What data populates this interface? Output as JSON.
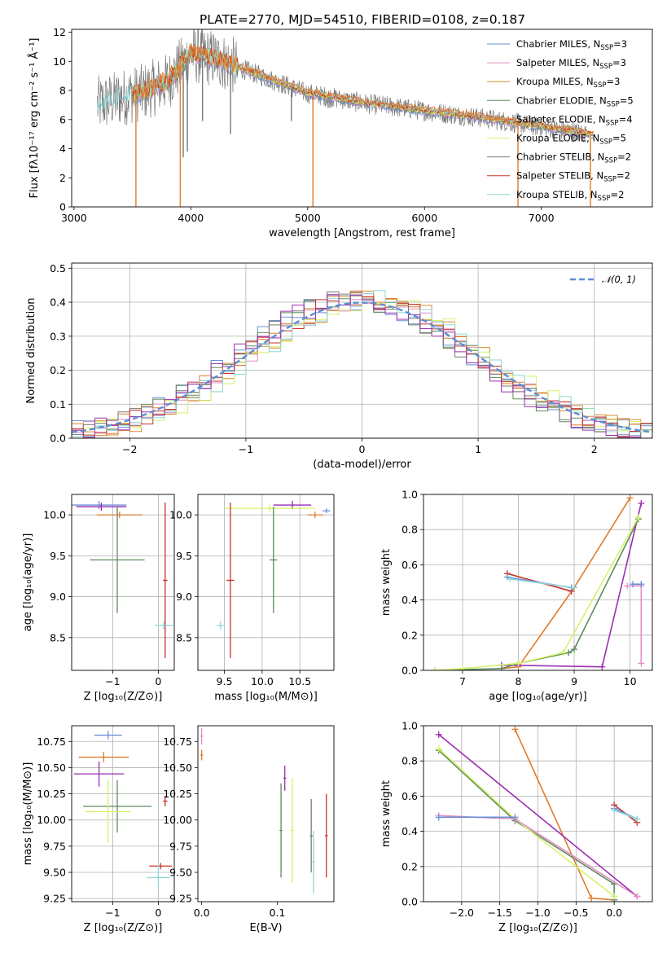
{
  "figure": {
    "title": "PLATE=2770, MJD=54510, FIBERID=0108, z=0.187"
  },
  "colors": {
    "Chabrier MILES": "#6a8fd6",
    "Salpeter MILES": "#e48fc4",
    "Kroupa MILES": "#d98a2a",
    "Chabrier ELODIE": "#5f8a5f",
    "Salpeter ELODIE": "#e07b2a",
    "Kroupa ELODIE": "#d6f26a",
    "Chabrier STELIB": "#777777",
    "Salpeter STELIB": "#c8302a",
    "Kroupa STELIB": "#8fd6d6",
    "purple": "#9a2fb0",
    "normal_curve": "#5b8fd6"
  },
  "chart_data": [
    {
      "id": "spectrum",
      "type": "line",
      "title": "PLATE=2770, MJD=54510, FIBERID=0108, z=0.187",
      "xlabel": "wavelength [Angstrom, rest frame]",
      "ylabel": "Flux [fλ10⁻¹⁷ erg cm⁻² s⁻¹ Å⁻¹]",
      "xlim": [
        2980,
        7950
      ],
      "ylim": [
        0,
        12.2
      ],
      "xticks": [
        3000,
        4000,
        5000,
        6000,
        7000
      ],
      "yticks": [
        0,
        2,
        4,
        6,
        8,
        10,
        12
      ],
      "legend_position": "upper-right",
      "legend": [
        {
          "label": "Chabrier MILES, N",
          "sub": "SSP",
          "eq": "=3"
        },
        {
          "label": "Salpeter MILES, N",
          "sub": "SSP",
          "eq": "=3"
        },
        {
          "label": "Kroupa MILES, N",
          "sub": "SSP",
          "eq": "=3"
        },
        {
          "label": "Chabrier ELODIE, N",
          "sub": "SSP",
          "eq": "=5"
        },
        {
          "label": "Salpeter ELODIE, N",
          "sub": "SSP",
          "eq": "=4"
        },
        {
          "label": "Kroupa ELODIE, N",
          "sub": "SSP",
          "eq": "=5"
        },
        {
          "label": "Chabrier STELIB, N",
          "sub": "SSP",
          "eq": "=2"
        },
        {
          "label": "Salpeter STELIB, N",
          "sub": "SSP",
          "eq": "=2"
        },
        {
          "label": "Kroupa STELIB, N",
          "sub": "SSP",
          "eq": "=2"
        }
      ],
      "continuum": {
        "x": [
          3200,
          3400,
          3600,
          3800,
          4000,
          4200,
          4500,
          5000,
          5500,
          6000,
          6500,
          7000,
          7400
        ],
        "y": [
          7.0,
          7.5,
          7.9,
          8.6,
          10.5,
          10.2,
          9.3,
          7.8,
          7.1,
          6.6,
          6.1,
          5.5,
          5.0
        ]
      },
      "dips": [
        {
          "x": 3530,
          "y": 0.0
        },
        {
          "x": 3910,
          "y": 0.0
        },
        {
          "x": 5045,
          "y": 0.0
        },
        {
          "x": 6800,
          "y": 0.0
        },
        {
          "x": 7420,
          "y": 0.0
        },
        {
          "x": 3935,
          "y": 3.4
        },
        {
          "x": 3970,
          "y": 3.8
        },
        {
          "x": 4100,
          "y": 5.9
        },
        {
          "x": 4340,
          "y": 5.0
        },
        {
          "x": 4860,
          "y": 5.9
        },
        {
          "x": 5175,
          "y": 6.8
        }
      ]
    },
    {
      "id": "residuals",
      "type": "line",
      "xlabel": "(data-model)/error",
      "ylabel": "Normed distribution",
      "xlim": [
        -2.5,
        2.5
      ],
      "ylim": [
        0,
        0.515
      ],
      "xticks": [
        -2,
        -1,
        0,
        1,
        2
      ],
      "yticks": [
        0.0,
        0.1,
        0.2,
        0.3,
        0.4,
        0.5
      ],
      "legend_position": "upper-right",
      "legend": [
        {
          "label": "𝒩(0, 1)"
        }
      ],
      "bin_width": 0.1
    },
    {
      "id": "age_vs_Z",
      "type": "scatter",
      "xlabel": "Z [log₁₀(Z/Z⊙)]",
      "ylabel": "age  [log₁₀(age/yr)]",
      "xlim": [
        -1.9,
        0.35
      ],
      "ylim": [
        8.1,
        10.25
      ],
      "xticks": [
        -1,
        0
      ],
      "yticks": [
        8.5,
        9.0,
        9.5,
        10.0
      ],
      "points": [
        {
          "x": -1.3,
          "y": 10.12,
          "color": "#6a8fd6",
          "xerr": 0.6,
          "yerr": 0.05
        },
        {
          "x": -1.25,
          "y": 10.1,
          "color": "#9a2fb0",
          "xerr": 0.55,
          "yerr": 0.05
        },
        {
          "x": -0.85,
          "y": 10.0,
          "color": "#e07b2a",
          "xerr": 0.5,
          "yerr": 0.04
        },
        {
          "x": -0.9,
          "y": 9.45,
          "color": "#5f8a5f",
          "xerr": 0.6,
          "yerr": 0.65
        },
        {
          "x": 0.15,
          "y": 9.2,
          "color": "#c8302a",
          "xerr": 0.05,
          "yerr": 0.95
        },
        {
          "x": 0.12,
          "y": 8.65,
          "color": "#8fd6d6",
          "xerr": 0.2,
          "yerr": 0.05
        }
      ]
    },
    {
      "id": "age_vs_mass",
      "type": "scatter",
      "xlabel": "mass [log₁₀(M/M⊙)]",
      "ylabel": "",
      "xlim": [
        9.15,
        10.95
      ],
      "ylim": [
        8.1,
        10.25
      ],
      "xticks": [
        9.5,
        10.0,
        10.5
      ],
      "yticks": [
        8.5,
        9.0,
        9.5,
        10.0
      ],
      "points": [
        {
          "x": 10.4,
          "y": 10.12,
          "color": "#9a2fb0",
          "xerr": 0.25,
          "yerr": 0.05
        },
        {
          "x": 10.1,
          "y": 10.08,
          "color": "#d6f26a",
          "xerr": 0.6,
          "yerr": 0.05
        },
        {
          "x": 10.7,
          "y": 10.0,
          "color": "#e07b2a",
          "xerr": 0.1,
          "yerr": 0.04
        },
        {
          "x": 10.85,
          "y": 10.05,
          "color": "#6a8fd6",
          "xerr": 0.05,
          "yerr": 0.03
        },
        {
          "x": 10.15,
          "y": 9.45,
          "color": "#5f8a5f",
          "xerr": 0.05,
          "yerr": 0.65
        },
        {
          "x": 9.58,
          "y": 9.2,
          "color": "#c8302a",
          "xerr": 0.05,
          "yerr": 0.95
        },
        {
          "x": 9.45,
          "y": 8.65,
          "color": "#8fd6d6",
          "xerr": 0.05,
          "yerr": 0.05
        }
      ]
    },
    {
      "id": "massweight_vs_age",
      "type": "line",
      "xlabel": "age  [log₁₀(age/yr)]",
      "ylabel": "mass weight",
      "xlim": [
        6.3,
        10.4
      ],
      "ylim": [
        0,
        1.0
      ],
      "xticks": [
        7,
        8,
        9,
        10
      ],
      "yticks": [
        0.0,
        0.2,
        0.4,
        0.6,
        0.8,
        1.0
      ],
      "series": [
        {
          "color": "#e07b2a",
          "x": [
            7.7,
            8.0,
            9.0,
            10.0
          ],
          "y": [
            0.01,
            0.02,
            0.47,
            0.98
          ]
        },
        {
          "color": "#9a2fb0",
          "x": [
            7.7,
            9.5,
            10.2
          ],
          "y": [
            0.03,
            0.02,
            0.95
          ]
        },
        {
          "color": "#5f8a5f",
          "x": [
            6.5,
            7.7,
            8.0,
            8.9,
            9.0,
            10.15
          ],
          "y": [
            0.0,
            0.01,
            0.04,
            0.1,
            0.12,
            0.86
          ]
        },
        {
          "color": "#d6f26a",
          "x": [
            6.5,
            7.0,
            8.0,
            8.8,
            10.15
          ],
          "y": [
            0.0,
            0.01,
            0.04,
            0.1,
            0.87
          ]
        },
        {
          "color": "#c8302a",
          "x": [
            7.8,
            8.95
          ],
          "y": [
            0.55,
            0.45
          ]
        },
        {
          "color": "#6a8fd6",
          "x": [
            7.8,
            8.95
          ],
          "y": [
            0.53,
            0.47
          ]
        },
        {
          "color": "#8fd6d6",
          "x": [
            7.85,
            9.0
          ],
          "y": [
            0.52,
            0.47
          ]
        },
        {
          "color": "#e48fc4",
          "x": [
            9.95,
            10.2,
            10.2
          ],
          "y": [
            0.48,
            0.48,
            0.04
          ]
        },
        {
          "color": "#6a8fd6",
          "x": [
            10.05,
            10.2
          ],
          "y": [
            0.49,
            0.49
          ]
        }
      ]
    },
    {
      "id": "mass_vs_Z",
      "type": "scatter",
      "xlabel": "Z [log₁₀(Z/Z⊙)]",
      "ylabel": "mass [log₁₀(M/M⊙)]",
      "xlim": [
        -1.9,
        0.35
      ],
      "ylim": [
        9.22,
        10.9
      ],
      "xticks": [
        -1,
        0
      ],
      "yticks": [
        9.25,
        9.5,
        9.75,
        10.0,
        10.25,
        10.5,
        10.75
      ],
      "points": [
        {
          "x": -1.1,
          "y": 10.81,
          "color": "#6a8fd6",
          "xerr": 0.3,
          "yerr": 0.04
        },
        {
          "x": -1.2,
          "y": 10.6,
          "color": "#e07b2a",
          "xerr": 0.55,
          "yerr": 0.05
        },
        {
          "x": -1.3,
          "y": 10.44,
          "color": "#9a2fb0",
          "xerr": 0.55,
          "yerr": 0.12
        },
        {
          "x": -0.9,
          "y": 10.13,
          "color": "#5f8a5f",
          "xerr": 0.75,
          "yerr": 0.25
        },
        {
          "x": -1.1,
          "y": 10.08,
          "color": "#d6f26a",
          "xerr": 0.5,
          "yerr": 0.3
        },
        {
          "x": 0.15,
          "y": 10.18,
          "color": "#c8302a",
          "xerr": 0.05,
          "yerr": 0.05
        },
        {
          "x": 0.05,
          "y": 9.56,
          "color": "#c8302a",
          "xerr": 0.25,
          "yerr": 0.03
        },
        {
          "x": 0.0,
          "y": 9.45,
          "color": "#8fd6d6",
          "xerr": 0.25,
          "yerr": 0.12
        }
      ]
    },
    {
      "id": "mass_vs_ebv",
      "type": "scatter",
      "xlabel": "E(B-V)",
      "ylabel": "",
      "xlim": [
        -0.005,
        0.175
      ],
      "ylim": [
        9.22,
        10.9
      ],
      "xticks": [
        0.0,
        0.1
      ],
      "yticks": [
        9.25,
        9.5,
        9.75,
        10.0,
        10.25,
        10.5,
        10.75
      ],
      "points": [
        {
          "x": 0.0,
          "y": 10.8,
          "color": "#e48fc4",
          "xerr": 0.002,
          "yerr": 0.08
        },
        {
          "x": 0.0,
          "y": 10.62,
          "color": "#e07b2a",
          "xerr": 0.002,
          "yerr": 0.05
        },
        {
          "x": 0.11,
          "y": 10.4,
          "color": "#9a2fb0",
          "xerr": 0.002,
          "yerr": 0.12
        },
        {
          "x": 0.105,
          "y": 9.9,
          "color": "#5f8a5f",
          "xerr": 0.002,
          "yerr": 0.45
        },
        {
          "x": 0.12,
          "y": 9.9,
          "color": "#d6f26a",
          "xerr": 0.002,
          "yerr": 0.5
        },
        {
          "x": 0.145,
          "y": 9.85,
          "color": "#777777",
          "xerr": 0.002,
          "yerr": 0.35
        },
        {
          "x": 0.165,
          "y": 9.85,
          "color": "#c8302a",
          "xerr": 0.002,
          "yerr": 0.4
        },
        {
          "x": 0.148,
          "y": 9.6,
          "color": "#8fd6d6",
          "xerr": 0.002,
          "yerr": 0.3
        }
      ]
    },
    {
      "id": "massweight_vs_Z",
      "type": "line",
      "xlabel": "Z [log₁₀(Z/Z⊙)]",
      "ylabel": "mass weight",
      "xlim": [
        -2.5,
        0.5
      ],
      "ylim": [
        0,
        1.0
      ],
      "xticks": [
        -2.0,
        -1.5,
        -1.0,
        -0.5,
        0.0
      ],
      "yticks": [
        0.0,
        0.2,
        0.4,
        0.6,
        0.8,
        1.0
      ],
      "series": [
        {
          "color": "#e07b2a",
          "x": [
            -1.3,
            -0.3,
            0.0
          ],
          "y": [
            0.98,
            0.02,
            0.01
          ]
        },
        {
          "color": "#9a2fb0",
          "x": [
            -2.3,
            0.3
          ],
          "y": [
            0.95,
            0.03
          ]
        },
        {
          "color": "#5f8a5f",
          "x": [
            -2.3,
            -1.3,
            0.0,
            0.0
          ],
          "y": [
            0.86,
            0.46,
            0.1,
            0.01
          ]
        },
        {
          "color": "#d6f26a",
          "x": [
            -2.3,
            -1.3,
            0.0
          ],
          "y": [
            0.87,
            0.47,
            0.03
          ]
        },
        {
          "color": "#e48fc4",
          "x": [
            -2.3,
            -1.3,
            0.3
          ],
          "y": [
            0.49,
            0.47,
            0.03
          ]
        },
        {
          "color": "#6a8fd6",
          "x": [
            -2.3,
            -1.3
          ],
          "y": [
            0.48,
            0.48
          ]
        },
        {
          "color": "#c8302a",
          "x": [
            0.0,
            0.3
          ],
          "y": [
            0.55,
            0.45
          ]
        },
        {
          "color": "#6a8fd6",
          "x": [
            0.0,
            0.3
          ],
          "y": [
            0.53,
            0.47
          ]
        },
        {
          "color": "#8fd6d6",
          "x": [
            0.0,
            0.3
          ],
          "y": [
            0.52,
            0.47
          ]
        }
      ]
    }
  ]
}
